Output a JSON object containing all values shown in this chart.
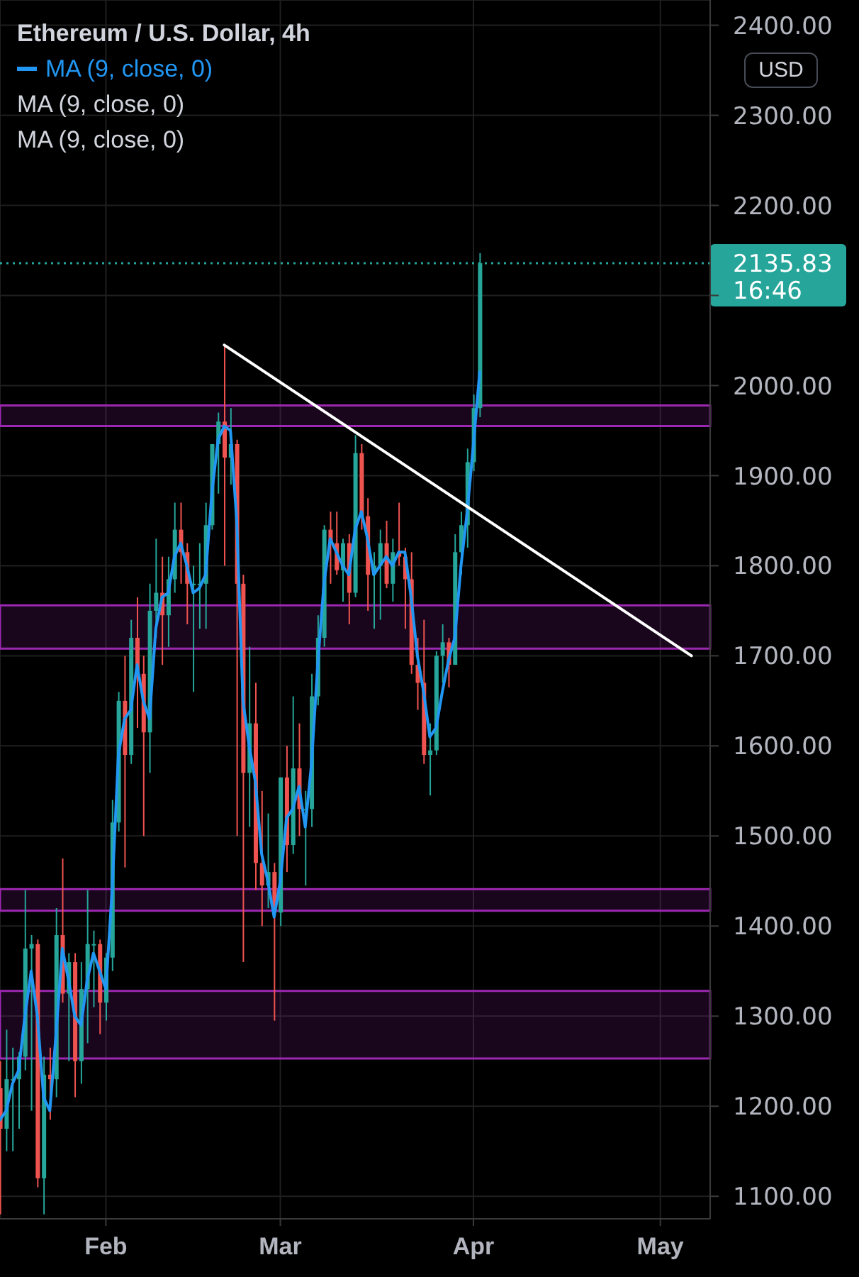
{
  "chart_data": {
    "type": "candlestick",
    "title": "Ethereum / U.S. Dollar, 4h",
    "x": [
      "--01-15",
      "--01-16",
      "--01-17",
      "--01-18",
      "--01-19",
      "--01-20",
      "--01-21",
      "--01-22",
      "--01-23",
      "--01-24",
      "--01-25",
      "--01-26",
      "--01-27",
      "--01-28",
      "--01-29",
      "--01-30",
      "--01-31",
      "--02-01",
      "--02-02",
      "--02-03",
      "--02-04",
      "--02-05",
      "--02-06",
      "--02-07",
      "--02-08",
      "--02-09",
      "--02-10",
      "--02-11",
      "--02-12",
      "--02-13",
      "--02-14",
      "--02-15",
      "--02-16",
      "--02-17",
      "--02-18",
      "--02-19",
      "--02-20",
      "--02-21",
      "--02-22",
      "--02-23",
      "--02-24",
      "--02-25",
      "--02-26",
      "--02-27",
      "--02-28",
      "--03-01",
      "--03-02",
      "--03-03",
      "--03-04",
      "--03-05",
      "--03-06",
      "--03-07",
      "--03-08",
      "--03-09",
      "--03-10",
      "--03-11",
      "--03-12",
      "--03-13",
      "--03-14",
      "--03-15",
      "--03-16",
      "--03-17",
      "--03-18",
      "--03-19",
      "--03-20",
      "--03-21",
      "--03-22",
      "--03-23",
      "--03-24",
      "--03-25",
      "--03-26",
      "--03-27",
      "--03-28",
      "--03-29",
      "--03-30",
      "--03-31",
      "--04-01",
      "--04-02"
    ],
    "ohlc": [
      [
        1220,
        1250,
        1080,
        1175
      ],
      [
        1175,
        1285,
        1150,
        1230
      ],
      [
        1230,
        1265,
        1150,
        1230
      ],
      [
        1230,
        1260,
        1175,
        1255
      ],
      [
        1255,
        1440,
        1240,
        1375
      ],
      [
        1375,
        1390,
        1195,
        1380
      ],
      [
        1380,
        1385,
        1110,
        1120
      ],
      [
        1120,
        1255,
        1080,
        1235
      ],
      [
        1235,
        1265,
        1185,
        1230
      ],
      [
        1230,
        1420,
        1210,
        1390
      ],
      [
        1390,
        1475,
        1315,
        1325
      ],
      [
        1325,
        1370,
        1250,
        1360
      ],
      [
        1360,
        1370,
        1210,
        1250
      ],
      [
        1250,
        1360,
        1225,
        1330
      ],
      [
        1330,
        1440,
        1270,
        1380
      ],
      [
        1380,
        1395,
        1310,
        1380
      ],
      [
        1380,
        1385,
        1280,
        1315
      ],
      [
        1315,
        1370,
        1295,
        1365
      ],
      [
        1365,
        1540,
        1350,
        1515
      ],
      [
        1515,
        1660,
        1505,
        1650
      ],
      [
        1650,
        1700,
        1465,
        1590
      ],
      [
        1590,
        1740,
        1580,
        1720
      ],
      [
        1720,
        1765,
        1620,
        1680
      ],
      [
        1680,
        1700,
        1500,
        1615
      ],
      [
        1615,
        1780,
        1570,
        1750
      ],
      [
        1750,
        1830,
        1720,
        1770
      ],
      [
        1770,
        1810,
        1690,
        1745
      ],
      [
        1745,
        1810,
        1710,
        1785
      ],
      [
        1785,
        1870,
        1770,
        1840
      ],
      [
        1840,
        1870,
        1780,
        1815
      ],
      [
        1815,
        1825,
        1735,
        1780
      ],
      [
        1780,
        1800,
        1660,
        1780
      ],
      [
        1780,
        1825,
        1730,
        1780
      ],
      [
        1780,
        1870,
        1730,
        1845
      ],
      [
        1845,
        1935,
        1840,
        1935
      ],
      [
        1935,
        1970,
        1880,
        1960
      ],
      [
        1960,
        2045,
        1800,
        1920
      ],
      [
        1920,
        1975,
        1890,
        1935
      ],
      [
        1935,
        1940,
        1500,
        1780
      ],
      [
        1780,
        1790,
        1360,
        1570
      ],
      [
        1570,
        1710,
        1510,
        1625
      ],
      [
        1625,
        1670,
        1440,
        1470
      ],
      [
        1470,
        1550,
        1400,
        1445
      ],
      [
        1445,
        1525,
        1420,
        1460
      ],
      [
        1460,
        1470,
        1295,
        1415
      ],
      [
        1415,
        1565,
        1400,
        1565
      ],
      [
        1565,
        1600,
        1460,
        1490
      ],
      [
        1490,
        1655,
        1480,
        1575
      ],
      [
        1575,
        1625,
        1500,
        1530
      ],
      [
        1530,
        1550,
        1445,
        1530
      ],
      [
        1530,
        1680,
        1510,
        1655
      ],
      [
        1655,
        1745,
        1645,
        1720
      ],
      [
        1720,
        1845,
        1710,
        1840
      ],
      [
        1840,
        1860,
        1780,
        1825
      ],
      [
        1825,
        1860,
        1790,
        1795
      ],
      [
        1795,
        1830,
        1760,
        1825
      ],
      [
        1825,
        1835,
        1735,
        1770
      ],
      [
        1770,
        1945,
        1765,
        1925
      ],
      [
        1925,
        1935,
        1840,
        1855
      ],
      [
        1855,
        1875,
        1750,
        1790
      ],
      [
        1790,
        1815,
        1730,
        1800
      ],
      [
        1800,
        1840,
        1740,
        1825
      ],
      [
        1825,
        1850,
        1775,
        1780
      ],
      [
        1780,
        1830,
        1760,
        1815
      ],
      [
        1815,
        1870,
        1800,
        1810
      ],
      [
        1810,
        1820,
        1730,
        1785
      ],
      [
        1785,
        1815,
        1680,
        1690
      ],
      [
        1690,
        1720,
        1640,
        1670
      ],
      [
        1670,
        1740,
        1580,
        1590
      ],
      [
        1590,
        1625,
        1545,
        1595
      ],
      [
        1595,
        1705,
        1590,
        1700
      ],
      [
        1700,
        1735,
        1670,
        1715
      ],
      [
        1715,
        1720,
        1665,
        1690
      ],
      [
        1690,
        1835,
        1690,
        1815
      ],
      [
        1815,
        1860,
        1790,
        1845
      ],
      [
        1845,
        1930,
        1820,
        1915
      ],
      [
        1915,
        1990,
        1905,
        1975
      ],
      [
        1975,
        2147,
        1965,
        2135.83
      ]
    ],
    "colors": [
      "#ef5350",
      "#26a69a",
      "#26a69a",
      "#26a69a",
      "#26a69a",
      "#26a69a",
      "#ef5350",
      "#26a69a",
      "#ef5350",
      "#26a69a",
      "#ef5350",
      "#26a69a",
      "#ef5350",
      "#26a69a",
      "#26a69a",
      "#26a69a",
      "#ef5350",
      "#26a69a",
      "#26a69a",
      "#26a69a",
      "#ef5350",
      "#26a69a",
      "#ef5350",
      "#ef5350",
      "#26a69a",
      "#26a69a",
      "#ef5350",
      "#26a69a",
      "#26a69a",
      "#ef5350",
      "#ef5350",
      "#26a69a",
      "#26a69a",
      "#26a69a",
      "#26a69a",
      "#26a69a",
      "#ef5350",
      "#26a69a",
      "#ef5350",
      "#ef5350",
      "#26a69a",
      "#ef5350",
      "#ef5350",
      "#26a69a",
      "#ef5350",
      "#26a69a",
      "#ef5350",
      "#26a69a",
      "#ef5350",
      "#26a69a",
      "#26a69a",
      "#26a69a",
      "#26a69a",
      "#ef5350",
      "#ef5350",
      "#26a69a",
      "#ef5350",
      "#26a69a",
      "#ef5350",
      "#ef5350",
      "#26a69a",
      "#26a69a",
      "#ef5350",
      "#26a69a",
      "#ef5350",
      "#ef5350",
      "#ef5350",
      "#ef5350",
      "#ef5350",
      "#26a69a",
      "#26a69a",
      "#26a69a",
      "#ef5350",
      "#26a69a",
      "#26a69a",
      "#26a69a",
      "#26a69a",
      "#26a69a"
    ],
    "series": [
      {
        "type": "line",
        "name": "MA (9, close, 0)",
        "color": "#2196f3",
        "values": [
          1185,
          1195,
          1225,
          1240,
          1300,
          1350,
          1300,
          1210,
          1195,
          1280,
          1375,
          1340,
          1300,
          1290,
          1340,
          1370,
          1350,
          1330,
          1440,
          1590,
          1630,
          1640,
          1690,
          1650,
          1630,
          1730,
          1765,
          1770,
          1810,
          1825,
          1800,
          1770,
          1775,
          1790,
          1880,
          1940,
          1955,
          1950,
          1850,
          1650,
          1600,
          1560,
          1480,
          1450,
          1410,
          1450,
          1520,
          1530,
          1555,
          1510,
          1580,
          1690,
          1780,
          1830,
          1815,
          1800,
          1790,
          1840,
          1860,
          1830,
          1790,
          1800,
          1810,
          1800,
          1815,
          1815,
          1765,
          1700,
          1660,
          1610,
          1620,
          1660,
          1695,
          1720,
          1800,
          1860,
          1935,
          2015
        ]
      },
      {
        "type": "line",
        "color": "#ffffff",
        "x": [
          "--02-20",
          "--05-06"
        ],
        "values": [
          2045,
          1700
        ]
      }
    ],
    "annotations": [
      "MA (9, close, 0)",
      "MA (9, close, 0)",
      "16:46",
      "USD"
    ],
    "ref_lines": [
      {
        "axis": "y",
        "value": 2135.83,
        "label": "2135.83",
        "color": "#26a69a",
        "line_style": "dotted"
      }
    ],
    "bands": [
      {
        "axis": "y",
        "from": 1955,
        "to": 1978,
        "color": "#9c27b0"
      },
      {
        "axis": "y",
        "from": 1708,
        "to": 1756,
        "color": "#9c27b0"
      },
      {
        "axis": "y",
        "from": 1417,
        "to": 1441,
        "color": "#9c27b0"
      },
      {
        "axis": "y",
        "from": 1253,
        "to": 1328,
        "color": "#9c27b0"
      }
    ],
    "xlim": [
      "--01-15",
      "--05-09"
    ],
    "xticks": [
      {
        "value": "--02-01",
        "label": "Feb"
      },
      {
        "value": "--03-01",
        "label": "Mar"
      },
      {
        "value": "--04-01",
        "label": "Apr"
      },
      {
        "value": "--05-01",
        "label": "May"
      }
    ],
    "ylim": [
      1075,
      2428
    ],
    "yticks": [
      {
        "value": 1100,
        "label": "1100.00"
      },
      {
        "value": 1200,
        "label": "1200.00"
      },
      {
        "value": 1300,
        "label": "1300.00"
      },
      {
        "value": 1400,
        "label": "1400.00"
      },
      {
        "value": 1500,
        "label": "1500.00"
      },
      {
        "value": 1600,
        "label": "1600.00"
      },
      {
        "value": 1700,
        "label": "1700.00"
      },
      {
        "value": 1800,
        "label": "1800.00"
      },
      {
        "value": 1900,
        "label": "1900.00"
      },
      {
        "value": 2000,
        "label": "2000.00"
      },
      {
        "value": 2100,
        "label": null
      },
      {
        "value": 2200,
        "label": "2200.00"
      },
      {
        "value": 2300,
        "label": "2300.00"
      },
      {
        "value": 2400,
        "label": "2400.00"
      }
    ],
    "grid": true,
    "legend": "top left",
    "marker": "none"
  }
}
